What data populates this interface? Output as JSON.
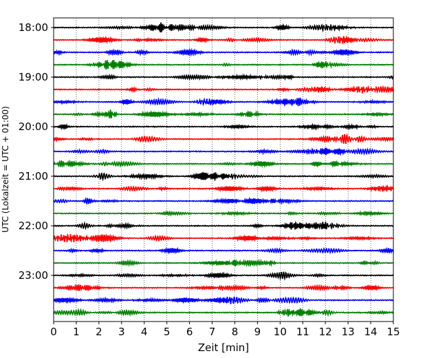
{
  "chart_data": {
    "type": "line",
    "title": "",
    "xlabel": "Zeit  [min]",
    "ylabel": "UTC (Lokalzeit = UTC + 01:00)",
    "xlim": [
      0,
      15
    ],
    "x_ticks": [
      "0",
      "1",
      "2",
      "3",
      "4",
      "5",
      "6",
      "7",
      "8",
      "9",
      "10",
      "11",
      "12",
      "13",
      "14",
      "15"
    ],
    "y_tick_labels": [
      "18:00",
      "19:00",
      "20:00",
      "21:00",
      "22:00",
      "23:00"
    ],
    "trace_interval_min": 15,
    "traces_per_hour": 4,
    "trace_count": 24,
    "trace_colors": [
      "#000000",
      "#ff0000",
      "#0000ff",
      "#008000"
    ],
    "grid": "vertical dotted at each minute",
    "series": [
      {
        "start": "18:00",
        "color": "#000000"
      },
      {
        "start": "18:15",
        "color": "#ff0000"
      },
      {
        "start": "18:30",
        "color": "#0000ff"
      },
      {
        "start": "18:45",
        "color": "#008000"
      },
      {
        "start": "19:00",
        "color": "#000000"
      },
      {
        "start": "19:15",
        "color": "#ff0000"
      },
      {
        "start": "19:30",
        "color": "#0000ff"
      },
      {
        "start": "19:45",
        "color": "#008000"
      },
      {
        "start": "20:00",
        "color": "#000000"
      },
      {
        "start": "20:15",
        "color": "#ff0000"
      },
      {
        "start": "20:30",
        "color": "#0000ff"
      },
      {
        "start": "20:45",
        "color": "#008000"
      },
      {
        "start": "21:00",
        "color": "#000000"
      },
      {
        "start": "21:15",
        "color": "#ff0000"
      },
      {
        "start": "21:30",
        "color": "#0000ff"
      },
      {
        "start": "21:45",
        "color": "#008000"
      },
      {
        "start": "22:00",
        "color": "#000000"
      },
      {
        "start": "22:15",
        "color": "#ff0000"
      },
      {
        "start": "22:30",
        "color": "#0000ff"
      },
      {
        "start": "22:45",
        "color": "#008000"
      },
      {
        "start": "23:00",
        "color": "#000000"
      },
      {
        "start": "23:15",
        "color": "#ff0000"
      },
      {
        "start": "23:30",
        "color": "#0000ff"
      },
      {
        "start": "23:45",
        "color": "#008000"
      }
    ]
  }
}
